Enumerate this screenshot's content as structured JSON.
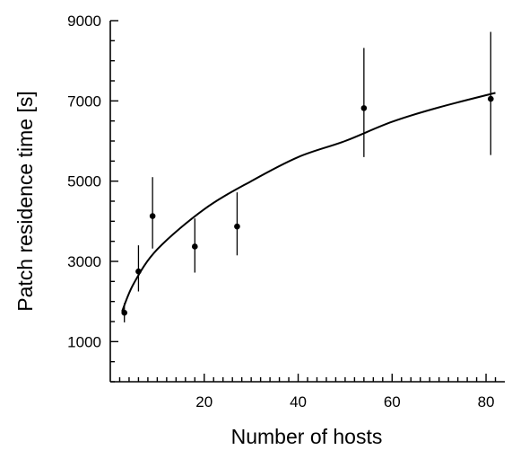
{
  "chart_data": {
    "type": "scatter",
    "title": "",
    "xlabel": "Number of hosts",
    "ylabel": "Patch residence time [s]",
    "xlim": [
      0,
      84
    ],
    "ylim": [
      0,
      9000
    ],
    "x_ticks": [
      20,
      40,
      60,
      80
    ],
    "y_ticks": [
      1000,
      3000,
      5000,
      7000,
      9000
    ],
    "x_tick_labels": [
      "20",
      "40",
      "60",
      "80"
    ],
    "y_tick_labels": [
      "1000",
      "3000",
      "5000",
      "7000",
      "9000"
    ],
    "grid": false,
    "legend": "none",
    "series": [
      {
        "type": "scatter",
        "points": [
          {
            "x": 3,
            "y": 1720,
            "err_low": 1480,
            "err_high": 1960
          },
          {
            "x": 6,
            "y": 2750,
            "err_low": 2250,
            "err_high": 3400
          },
          {
            "x": 9,
            "y": 4130,
            "err_low": 3320,
            "err_high": 5100
          },
          {
            "x": 18,
            "y": 3370,
            "err_low": 2720,
            "err_high": 4070
          },
          {
            "x": 27,
            "y": 3870,
            "err_low": 3150,
            "err_high": 4720
          },
          {
            "x": 54,
            "y": 6820,
            "err_low": 5600,
            "err_high": 8320
          },
          {
            "x": 81,
            "y": 7050,
            "err_low": 5650,
            "err_high": 8720
          }
        ]
      },
      {
        "type": "line",
        "fit": "power",
        "x_range": [
          2.5,
          82
        ],
        "points": [
          {
            "x": 2.5,
            "y": 1750
          },
          {
            "x": 5,
            "y": 2450
          },
          {
            "x": 10,
            "y": 3300
          },
          {
            "x": 20,
            "y": 4300
          },
          {
            "x": 30,
            "y": 5000
          },
          {
            "x": 40,
            "y": 5600
          },
          {
            "x": 50,
            "y": 6000
          },
          {
            "x": 60,
            "y": 6480
          },
          {
            "x": 70,
            "y": 6840
          },
          {
            "x": 82,
            "y": 7200
          }
        ]
      }
    ]
  }
}
